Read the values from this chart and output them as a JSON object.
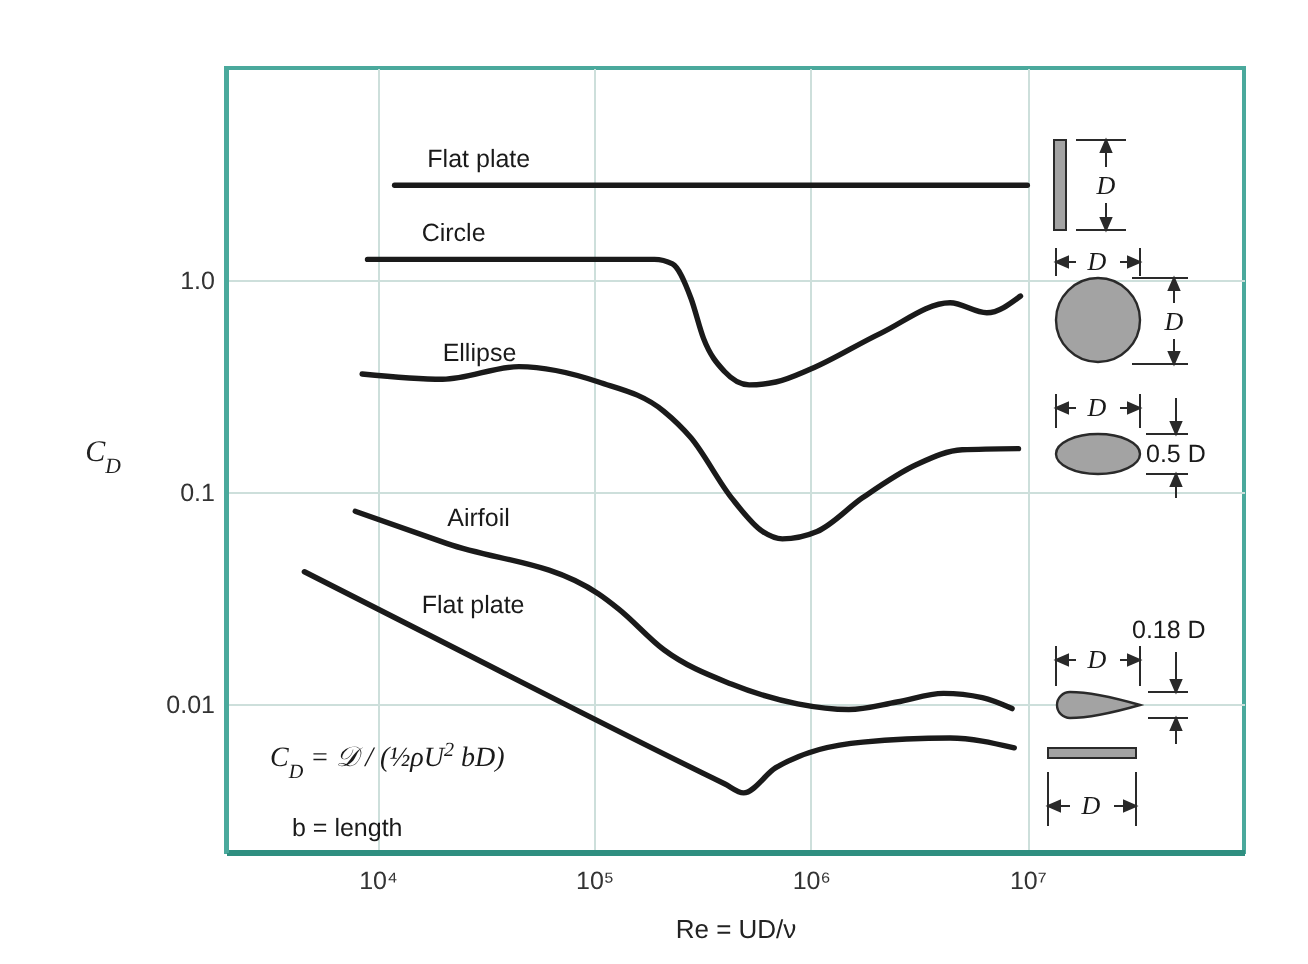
{
  "chart_data": {
    "type": "line",
    "xlabel": "Re = UD/ν",
    "ylabel": "C$_{D}$",
    "log": "xy",
    "grid": true,
    "xlim": [
      2000,
      100000000
    ],
    "ylim": [
      0.002,
      10
    ],
    "xticks": [
      {
        "value": 10000,
        "label": "10⁴"
      },
      {
        "value": 100000,
        "label": "10⁵"
      },
      {
        "value": 1000000,
        "label": "10⁶"
      },
      {
        "value": 10000000,
        "label": "10⁷"
      }
    ],
    "yticks": [
      {
        "value": 1,
        "label": "1.0"
      },
      0.1,
      0.01
    ],
    "series": [
      {
        "name": "Flat plate",
        "color": "#1a1a1a",
        "x": [
          12000,
          17000,
          10000000
        ],
        "values": [
          2.8,
          2.8,
          2.8
        ]
      },
      {
        "name": "Circle",
        "color": "#1a1a1a",
        "x": [
          9000,
          16000,
          190000,
          230000,
          280000,
          320000,
          400000,
          520000,
          690000,
          1000000,
          2100000,
          4400000,
          6500000,
          9300000
        ],
        "values": [
          1.25,
          1.25,
          1.25,
          1.19,
          0.82,
          0.53,
          0.37,
          0.32,
          0.33,
          0.38,
          0.56,
          0.78,
          0.7,
          0.84
        ]
      },
      {
        "name": "Ellipse",
        "color": "#1a1a1a",
        "x": [
          8500,
          20000,
          45000,
          105000,
          210000,
          280000,
          430000,
          600000,
          740000,
          1070000,
          1740000,
          3100000,
          5000000,
          9100000
        ],
        "values": [
          0.36,
          0.34,
          0.39,
          0.33,
          0.24,
          0.18,
          0.094,
          0.065,
          0.06,
          0.065,
          0.094,
          0.135,
          0.158,
          0.16
        ]
      },
      {
        "name": "Airfoil",
        "color": "#1a1a1a",
        "x": [
          7900,
          21000,
          105000,
          130000,
          210000,
          430000,
          870000,
          1500000,
          2500000,
          4100000,
          6200000,
          8500000
        ],
        "values": [
          0.081,
          0.057,
          0.033,
          0.028,
          0.018,
          0.0124,
          0.01,
          0.0094,
          0.0102,
          0.0112,
          0.0107,
          0.0095
        ]
      },
      {
        "name": "Flat plate",
        "color": "#1a1a1a",
        "x": [
          4600,
          16000,
          400000,
          490000,
          690000,
          1740000,
          4400000,
          8700000
        ],
        "values": [
          0.042,
          0.022,
          0.0042,
          0.0038,
          0.005,
          0.0066,
          0.0069,
          0.0062
        ]
      }
    ],
    "annotations": [
      "C$_{D}$ = 𝒟 / (½ρU$^{2}$ bD)",
      "b = length",
      "D",
      "D",
      "D",
      "D",
      "0.5 D",
      "D",
      "0.18 D",
      "D"
    ]
  }
}
